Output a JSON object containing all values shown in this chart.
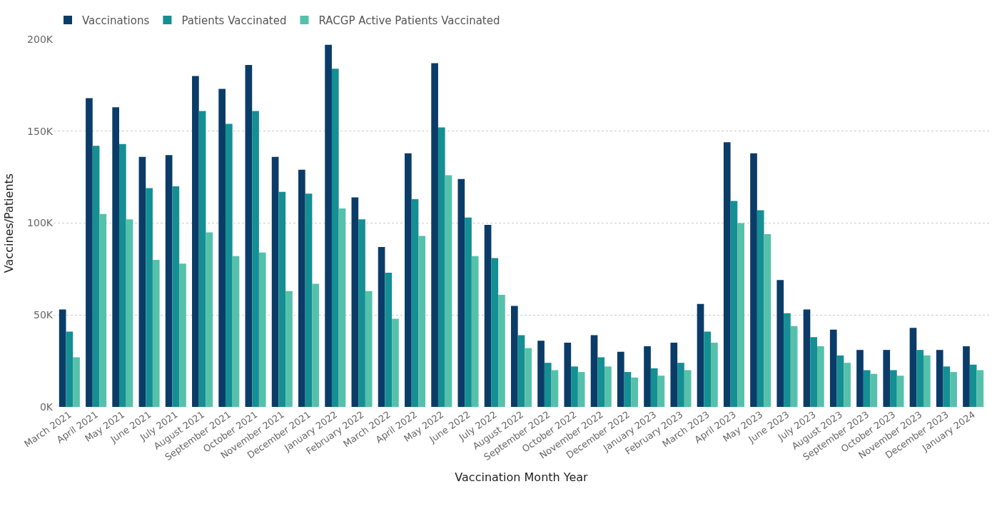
{
  "chart_data": {
    "type": "bar",
    "xlabel": "Vaccination Month Year",
    "ylabel": "Vaccines/Patients",
    "categories": [
      "March 2021",
      "April 2021",
      "May 2021",
      "June 2021",
      "July 2021",
      "August 2021",
      "September 2021",
      "October 2021",
      "November 2021",
      "December 2021",
      "January 2022",
      "February 2022",
      "March 2022",
      "April 2022",
      "May 2022",
      "June 2022",
      "July 2022",
      "August 2022",
      "September 2022",
      "October 2022",
      "November 2022",
      "December 2022",
      "January 2023",
      "February 2023",
      "March 2023",
      "April 2023",
      "May 2023",
      "June 2023",
      "July 2023",
      "August 2023",
      "September 2023",
      "October 2023",
      "November 2023",
      "December 2023",
      "January 2024"
    ],
    "series": [
      {
        "name": "Vaccinations",
        "color": "#0b3c68",
        "values": [
          53000,
          168000,
          163000,
          136000,
          137000,
          180000,
          173000,
          186000,
          136000,
          129000,
          197000,
          114000,
          87000,
          138000,
          187000,
          124000,
          99000,
          55000,
          36000,
          35000,
          39000,
          30000,
          33000,
          35000,
          56000,
          144000,
          138000,
          69000,
          53000,
          42000,
          31000,
          31000,
          43000,
          31000,
          33000
        ]
      },
      {
        "name": "Patients Vaccinated",
        "color": "#148f93",
        "values": [
          41000,
          142000,
          143000,
          119000,
          120000,
          161000,
          154000,
          161000,
          117000,
          116000,
          184000,
          102000,
          73000,
          113000,
          152000,
          103000,
          81000,
          39000,
          24000,
          22000,
          27000,
          19000,
          21000,
          24000,
          41000,
          112000,
          107000,
          51000,
          38000,
          28000,
          20000,
          20000,
          31000,
          22000,
          23000
        ]
      },
      {
        "name": "RACGP Active Patients Vaccinated",
        "color": "#55c1ab",
        "values": [
          27000,
          105000,
          102000,
          80000,
          78000,
          95000,
          82000,
          84000,
          63000,
          67000,
          108000,
          63000,
          48000,
          93000,
          126000,
          82000,
          61000,
          32000,
          20000,
          19000,
          22000,
          16000,
          17000,
          20000,
          35000,
          100000,
          94000,
          44000,
          33000,
          24000,
          18000,
          17000,
          28000,
          19000,
          20000
        ]
      }
    ],
    "ylim": [
      0,
      200000
    ],
    "yticks": [
      {
        "value": 0,
        "label": "0K"
      },
      {
        "value": 50000,
        "label": "50K"
      },
      {
        "value": 100000,
        "label": "100K"
      },
      {
        "value": 150000,
        "label": "150K"
      },
      {
        "value": 200000,
        "label": "200K"
      }
    ],
    "grid": "y",
    "legend": "top left"
  }
}
